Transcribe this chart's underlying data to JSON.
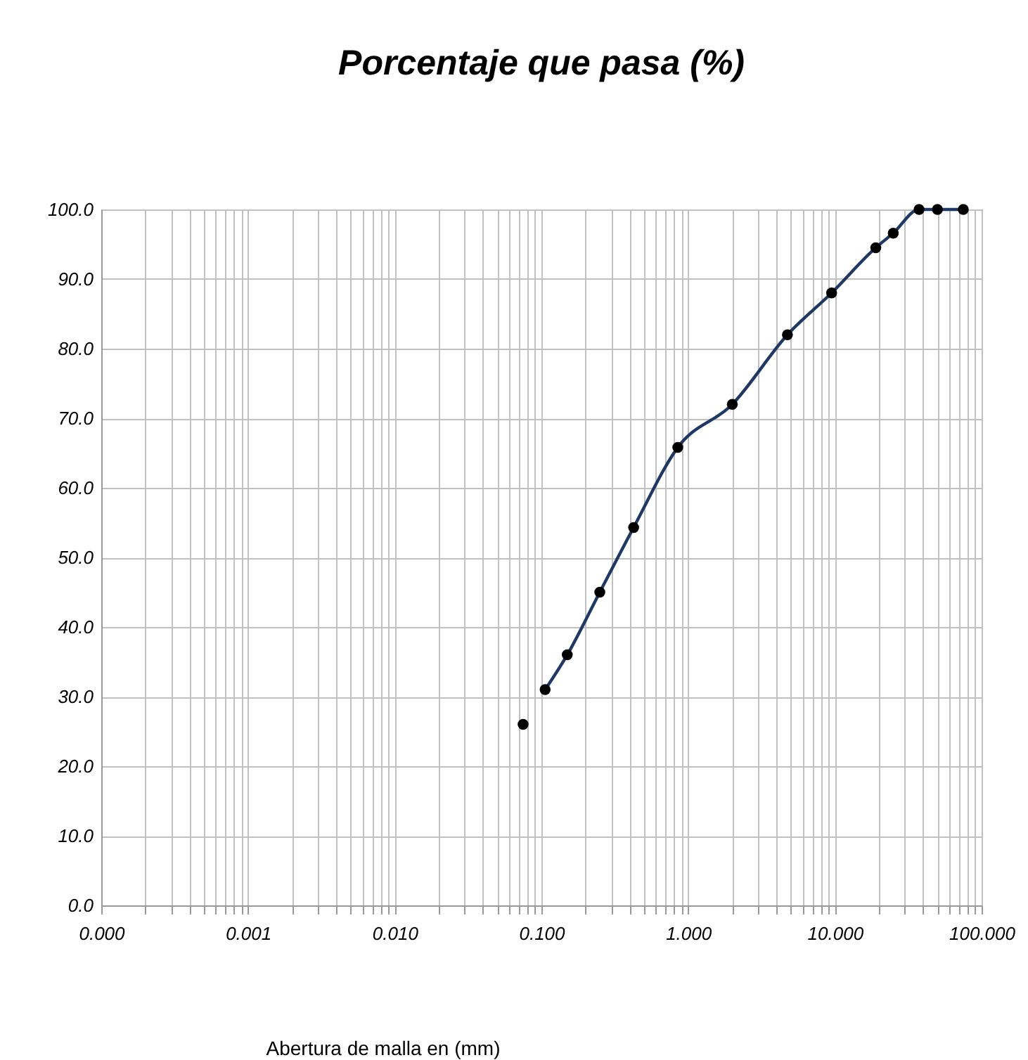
{
  "chart_data": {
    "type": "scatter",
    "title": "Porcentaje que pasa (%)",
    "xlabel": "Abertura de malla en (mm)",
    "log": "x",
    "grid": true,
    "marker": "circle",
    "xlim": [
      0.0001,
      100
    ],
    "ylim": [
      0,
      100
    ],
    "xticks": [
      {
        "value": 0.0001,
        "label": "0.000"
      },
      {
        "value": 0.0002,
        "label": null
      },
      {
        "value": 0.0003,
        "label": null
      },
      {
        "value": 0.0004,
        "label": null
      },
      {
        "value": 0.0005,
        "label": null
      },
      {
        "value": 0.0006,
        "label": null
      },
      {
        "value": 0.0007,
        "label": null
      },
      {
        "value": 0.0008,
        "label": null
      },
      {
        "value": 0.0009,
        "label": null
      },
      {
        "value": 0.001,
        "label": "0.001"
      },
      {
        "value": 0.002,
        "label": null
      },
      {
        "value": 0.003,
        "label": null
      },
      {
        "value": 0.004,
        "label": null
      },
      {
        "value": 0.005,
        "label": null
      },
      {
        "value": 0.006,
        "label": null
      },
      {
        "value": 0.007,
        "label": null
      },
      {
        "value": 0.008,
        "label": null
      },
      {
        "value": 0.009,
        "label": null
      },
      {
        "value": 0.01,
        "label": "0.010"
      },
      {
        "value": 0.02,
        "label": null
      },
      {
        "value": 0.03,
        "label": null
      },
      {
        "value": 0.04,
        "label": null
      },
      {
        "value": 0.05,
        "label": null
      },
      {
        "value": 0.06,
        "label": null
      },
      {
        "value": 0.07,
        "label": null
      },
      {
        "value": 0.08,
        "label": null
      },
      {
        "value": 0.09,
        "label": null
      },
      {
        "value": 0.1,
        "label": "0.100"
      },
      {
        "value": 0.2,
        "label": null
      },
      {
        "value": 0.3,
        "label": null
      },
      {
        "value": 0.4,
        "label": null
      },
      {
        "value": 0.5,
        "label": null
      },
      {
        "value": 0.6,
        "label": null
      },
      {
        "value": 0.7,
        "label": null
      },
      {
        "value": 0.8,
        "label": null
      },
      {
        "value": 0.9,
        "label": null
      },
      {
        "value": 1,
        "label": "1.000"
      },
      {
        "value": 2,
        "label": null
      },
      {
        "value": 3,
        "label": null
      },
      {
        "value": 4,
        "label": null
      },
      {
        "value": 5,
        "label": null
      },
      {
        "value": 6,
        "label": null
      },
      {
        "value": 7,
        "label": null
      },
      {
        "value": 8,
        "label": null
      },
      {
        "value": 9,
        "label": null
      },
      {
        "value": 10,
        "label": "10.000"
      },
      {
        "value": 20,
        "label": null
      },
      {
        "value": 30,
        "label": null
      },
      {
        "value": 40,
        "label": null
      },
      {
        "value": 50,
        "label": null
      },
      {
        "value": 60,
        "label": null
      },
      {
        "value": 70,
        "label": null
      },
      {
        "value": 80,
        "label": null
      },
      {
        "value": 90,
        "label": null
      },
      {
        "value": 100,
        "label": "100.000"
      }
    ],
    "yticks": [
      {
        "value": 0,
        "label": "0.0"
      },
      {
        "value": 10,
        "label": "10.0"
      },
      {
        "value": 20,
        "label": "20.0"
      },
      {
        "value": 30,
        "label": "30.0"
      },
      {
        "value": 40,
        "label": "40.0"
      },
      {
        "value": 50,
        "label": "50.0"
      },
      {
        "value": 60,
        "label": "60.0"
      },
      {
        "value": 70,
        "label": "70.0"
      },
      {
        "value": 80,
        "label": "80.0"
      },
      {
        "value": 90,
        "label": "90.0"
      },
      {
        "value": 100,
        "label": "100.0"
      }
    ],
    "series": [
      {
        "type": "line",
        "color": "#203864",
        "line_style": "solid",
        "marker": "none",
        "x": [
          0.106,
          0.15,
          0.25,
          0.425,
          0.85,
          2,
          4.75,
          9.5,
          19,
          25,
          37.5,
          50,
          75
        ],
        "values": [
          31,
          36,
          45,
          54.3,
          65.8,
          72,
          82,
          88,
          94.5,
          96.6,
          100,
          100,
          100
        ]
      },
      {
        "color": "#000000",
        "x": [
          0.075,
          0.106,
          0.15,
          0.25,
          0.425,
          0.85,
          2,
          4.75,
          9.5,
          19,
          25,
          37.5,
          50,
          75
        ],
        "values": [
          26,
          31,
          36,
          45,
          54.3,
          65.8,
          72,
          82,
          88,
          94.5,
          96.6,
          100,
          100,
          100
        ]
      }
    ]
  }
}
